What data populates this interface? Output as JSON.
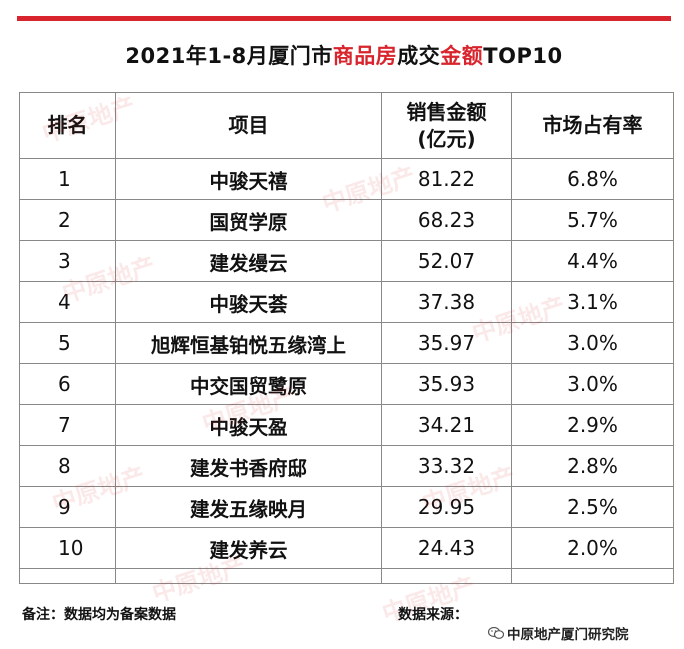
{
  "title": {
    "part1": "2021年1-8月厦门市",
    "part2": "商品房",
    "part3": "成交",
    "part4": "金额",
    "part5": "TOP10"
  },
  "table": {
    "headers": {
      "rank": "排名",
      "project": "项目",
      "sales_line1": "销售金额",
      "sales_line2": "(亿元)",
      "share": "市场占有率"
    },
    "rows": [
      {
        "rank": "1",
        "project": "中骏天禧",
        "sales": "81.22",
        "share": "6.8%"
      },
      {
        "rank": "2",
        "project": "国贸学原",
        "sales": "68.23",
        "share": "5.7%"
      },
      {
        "rank": "3",
        "project": "建发缦云",
        "sales": "52.07",
        "share": "4.4%"
      },
      {
        "rank": "4",
        "project": "中骏天荟",
        "sales": "37.38",
        "share": "3.1%"
      },
      {
        "rank": "5",
        "project": "旭辉恒基铂悦五缘湾上",
        "sales": "35.97",
        "share": "3.0%"
      },
      {
        "rank": "6",
        "project": "中交国贸鹭原",
        "sales": "35.93",
        "share": "3.0%"
      },
      {
        "rank": "7",
        "project": "中骏天盈",
        "sales": "34.21",
        "share": "2.9%"
      },
      {
        "rank": "8",
        "project": "建发书香府邸",
        "sales": "33.32",
        "share": "2.8%"
      },
      {
        "rank": "9",
        "project": "建发五缘映月",
        "sales": "29.95",
        "share": "2.5%"
      },
      {
        "rank": "10",
        "project": "建发养云",
        "sales": "24.43",
        "share": "2.0%"
      }
    ]
  },
  "footer": {
    "note": "备注：数据均为备案数据",
    "source": "数据来源：",
    "wechat_account": "中原地产厦门研究院"
  },
  "watermark_text": "中原地产",
  "colors": {
    "accent_red": "#d8242c",
    "grid": "#888888"
  }
}
